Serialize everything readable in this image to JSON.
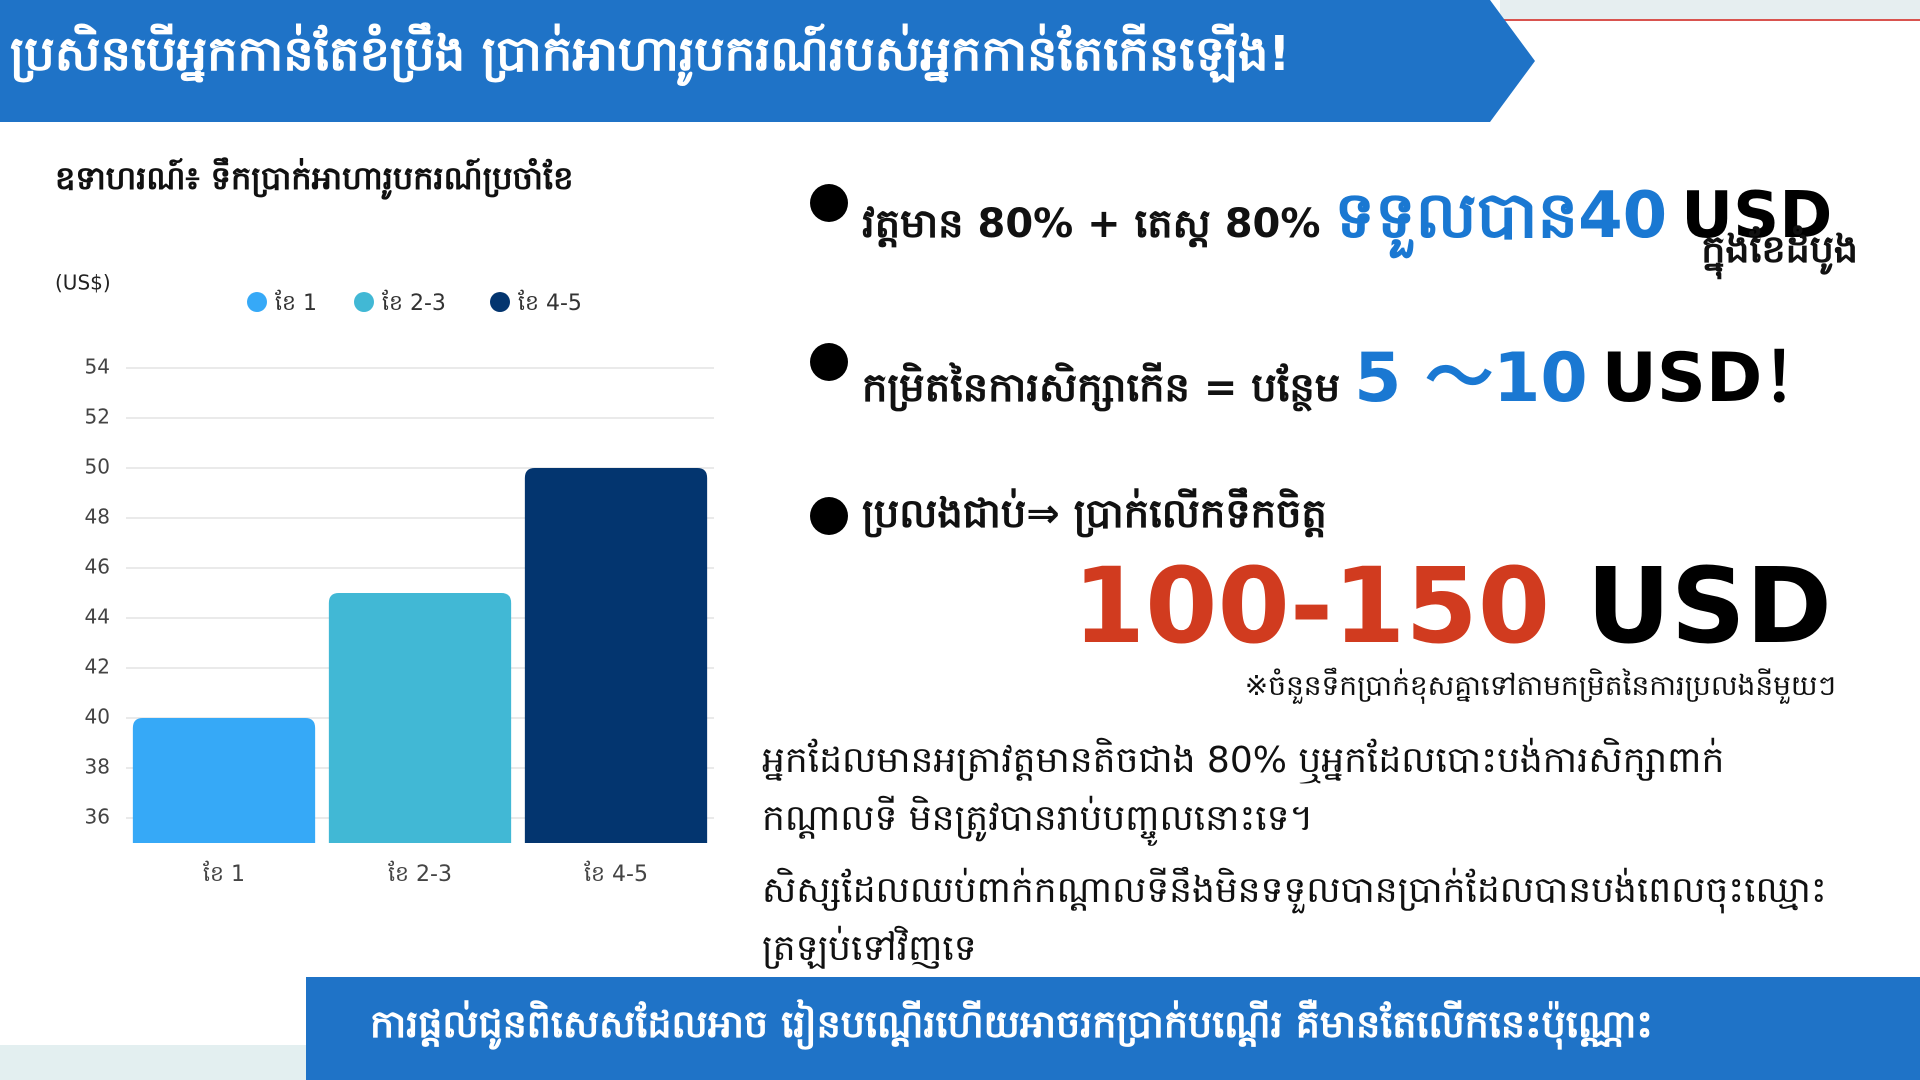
{
  "header": {
    "title": "ប្រសិនបើអ្នកកាន់តែខំប្រឹង  ប្រាក់អាហារូបករណ៍របស់អ្នកកាន់តែកើនឡើង!"
  },
  "chart_data": {
    "type": "bar",
    "title": "ឧទាហរណ៍៖ ទឹកប្រាក់អាហារូបករណ៍ប្រចាំខែ",
    "y_label": "(US$)",
    "categories": [
      "ខែ 1",
      "ខែ 2-3",
      "ខែ 4-5"
    ],
    "values": [
      40,
      45,
      50
    ],
    "colors": [
      "#36a9f7",
      "#41b8d5",
      "#03356f"
    ],
    "ylim": [
      35,
      55
    ],
    "yticks": [
      36,
      38,
      40,
      42,
      44,
      46,
      48,
      50,
      52,
      54
    ],
    "grid": true,
    "legend": "top"
  },
  "points": [
    {
      "text": "វត្តមាន 80% + តេស្ត 80%",
      "highlight": "ទទួលបាន40",
      "unit": "USD",
      "sub": "ក្នុងខែដំបូង"
    },
    {
      "text": "កម្រិតនៃការសិក្សាកើន =  បន្ថែម",
      "highlight": "5 〜10",
      "unit": "USD！"
    },
    {
      "text": "ប្រលងជាប់⇒ ប្រាក់លើកទឹកចិត្ត",
      "highlight": "100-150",
      "unit": "USD"
    }
  ],
  "note": "※ចំនួនទឹកប្រាក់ខុសគ្នាទៅតាមកម្រិតនៃការប្រលងនីមួយៗ",
  "paragraphs": [
    "អ្នកដែលមានអត្រាវត្តមានតិចជាង 80% ឬអ្នកដែលបោះបង់ការសិក្សាពាក់កណ្ដាលទី មិនត្រូវបានរាប់បញ្ចូលនោះទេ។",
    "សិស្សដែលឈប់ពាក់កណ្ដាលទីនឹងមិនទទួលបានប្រាក់ដែលបានបង់ពេលចុះឈ្មោះត្រឡប់ទៅវិញទេ"
  ],
  "footer": {
    "text": "ការផ្ដល់ជូនពិសេសដែលអាច រៀនបណ្ដើរហើយអាចរកប្រាក់បណ្ដើរ គឺមានតែលើកនេះប៉ុណ្ណោះ"
  }
}
